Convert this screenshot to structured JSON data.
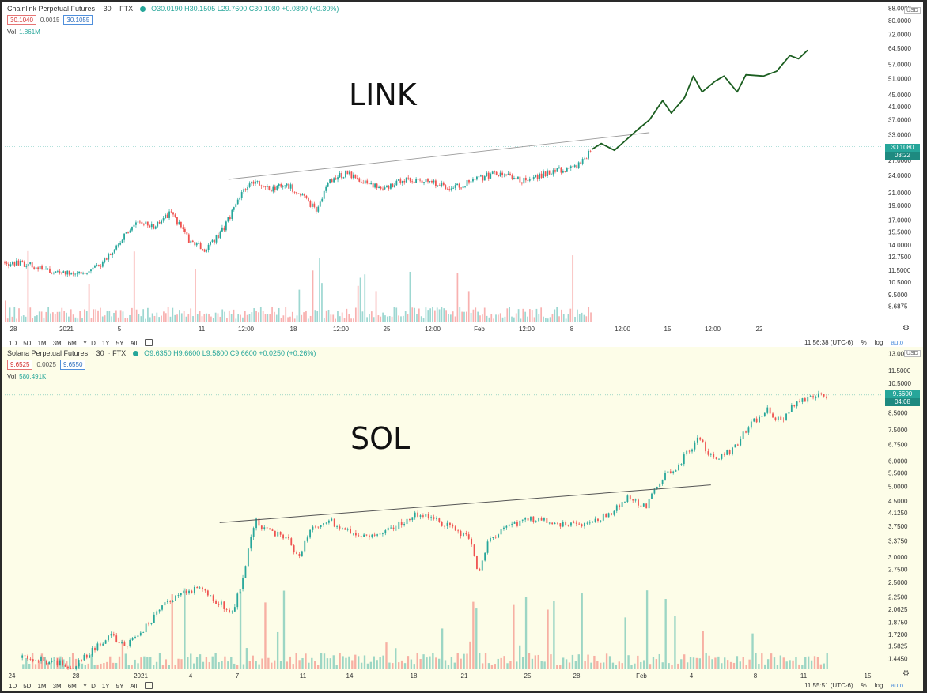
{
  "panels": {
    "top": {
      "header": {
        "symbol": "Chainlink Perpetual Futures",
        "interval": "30",
        "exchange": "FTX",
        "ohlc": "O30.0190 H30.1505 L29.7600 C30.1080 +0.0890 (+0.30%)"
      },
      "sell_price": "30.1040",
      "spread": "0.0015",
      "buy_price": "30.1055",
      "volume_label": "Vol",
      "volume_value": "1.861M",
      "annotation": "LINK",
      "price_badge": "30.1080",
      "countdown_badge": "03:22",
      "currency": "USD",
      "clock": "11:56:38 (UTC-6)",
      "x_ticks": [
        "28",
        "2021",
        "5",
        "11",
        "12:00",
        "18",
        "12:00",
        "25",
        "12:00",
        "Feb",
        "12:00",
        "8",
        "12:00",
        "15",
        "12:00",
        "22"
      ]
    },
    "bottom": {
      "header": {
        "symbol": "Solana Perpetual Futures",
        "interval": "30",
        "exchange": "FTX",
        "ohlc": "O9.6350 H9.6600 L9.5800 C9.6600 +0.0250 (+0.26%)"
      },
      "sell_price": "9.6525",
      "spread": "0.0025",
      "buy_price": "9.6550",
      "volume_label": "Vol",
      "volume_value": "580.491K",
      "annotation": "SOL",
      "price_badge": "9.6600",
      "countdown_badge": "04:08",
      "currency": "USD",
      "clock": "11:55:51 (UTC-6)",
      "x_ticks": [
        "24",
        "28",
        "2021",
        "4",
        "7",
        "11",
        "14",
        "18",
        "21",
        "25",
        "28",
        "Feb",
        "4",
        "8",
        "11",
        "15"
      ]
    }
  },
  "timeframes": [
    "1D",
    "5D",
    "1M",
    "3M",
    "6M",
    "YTD",
    "1Y",
    "5Y",
    "All"
  ],
  "scale_options": {
    "percent": "%",
    "log": "log",
    "auto": "auto"
  },
  "colors": {
    "up": "#26a69a",
    "down": "#ef5350",
    "projection": "#1b5e20",
    "trendline": "#888888"
  },
  "chart_data": [
    {
      "type": "candlestick",
      "title": "Chainlink Perpetual Futures · 30 · FTX",
      "log_scale": true,
      "y_ticks": [
        "88.0000",
        "80.0000",
        "72.0000",
        "64.5000",
        "57.0000",
        "51.0000",
        "45.0000",
        "41.0000",
        "37.0000",
        "33.0000",
        "30.1080",
        "27.0000",
        "24.0000",
        "21.0000",
        "19.0000",
        "17.0000",
        "15.5000",
        "14.0000",
        "12.7500",
        "11.5000",
        "10.5000",
        "9.5000",
        "8.6875"
      ],
      "ylim": [
        8.2,
        90
      ],
      "x_range": [
        0,
        100
      ],
      "history_end_x": 67,
      "last_price": 30.108,
      "price_path": [
        [
          0,
          12.2
        ],
        [
          3,
          12.0
        ],
        [
          6,
          11.2
        ],
        [
          9,
          11.3
        ],
        [
          11,
          12.0
        ],
        [
          13,
          14.2
        ],
        [
          15,
          16.8
        ],
        [
          17,
          16.0
        ],
        [
          19,
          18.0
        ],
        [
          21,
          14.5
        ],
        [
          23,
          13.5
        ],
        [
          25,
          16.0
        ],
        [
          27,
          21.0
        ],
        [
          28.5,
          23.0
        ],
        [
          30,
          21.5
        ],
        [
          32,
          22.5
        ],
        [
          34,
          20.5
        ],
        [
          35.5,
          18.3
        ],
        [
          37,
          23.0
        ],
        [
          39,
          24.5
        ],
        [
          41,
          23.0
        ],
        [
          43,
          21.5
        ],
        [
          45,
          23.0
        ],
        [
          47,
          23.2
        ],
        [
          49,
          22.5
        ],
        [
          51,
          21.8
        ],
        [
          53,
          22.8
        ],
        [
          55,
          24.0
        ],
        [
          57,
          24.5
        ],
        [
          59,
          23.0
        ],
        [
          61,
          24.0
        ],
        [
          63,
          25.0
        ],
        [
          65,
          25.5
        ],
        [
          67,
          29.5
        ]
      ],
      "trendline": [
        [
          25.5,
          23.3
        ],
        [
          73.5,
          33.5
        ]
      ],
      "projection": [
        [
          67,
          29.5
        ],
        [
          68,
          30.8
        ],
        [
          69.5,
          29.2
        ],
        [
          70.5,
          31.0
        ],
        [
          72,
          34.0
        ],
        [
          73.5,
          37.0
        ],
        [
          75,
          43.0
        ],
        [
          76,
          39.0
        ],
        [
          77.5,
          44.0
        ],
        [
          78.5,
          52.0
        ],
        [
          79.5,
          46.0
        ],
        [
          81,
          50.0
        ],
        [
          82,
          52.0
        ],
        [
          83.5,
          46.0
        ],
        [
          84.5,
          52.5
        ],
        [
          86.5,
          52.0
        ],
        [
          88,
          54.0
        ],
        [
          89.5,
          61.0
        ],
        [
          90.5,
          59.5
        ],
        [
          91.5,
          63.5
        ]
      ]
    },
    {
      "type": "candlestick",
      "title": "Solana Perpetual Futures · 30 · FTX",
      "log_scale": true,
      "y_ticks": [
        "13.0000",
        "11.5000",
        "10.5000",
        "9.6600",
        "8.5000",
        "7.5000",
        "6.7500",
        "6.0000",
        "5.5000",
        "5.0000",
        "4.5000",
        "4.1250",
        "3.7500",
        "3.3750",
        "3.0000",
        "2.7500",
        "2.5000",
        "2.2500",
        "2.0625",
        "1.8750",
        "1.7200",
        "1.5825",
        "1.4450"
      ],
      "ylim": [
        1.36,
        13.2
      ],
      "x_range": [
        0,
        100
      ],
      "history_end_x": 94,
      "last_price": 9.66,
      "price_path": [
        [
          2,
          1.45
        ],
        [
          5,
          1.42
        ],
        [
          8,
          1.36
        ],
        [
          10,
          1.55
        ],
        [
          12,
          1.7
        ],
        [
          14,
          1.6
        ],
        [
          16,
          1.8
        ],
        [
          18,
          2.1
        ],
        [
          20,
          2.3
        ],
        [
          22,
          2.4
        ],
        [
          24,
          2.2
        ],
        [
          26,
          2.0
        ],
        [
          27,
          2.5
        ],
        [
          28.5,
          3.9
        ],
        [
          30,
          3.6
        ],
        [
          32,
          3.5
        ],
        [
          33.5,
          3.0
        ],
        [
          35,
          3.7
        ],
        [
          37,
          3.9
        ],
        [
          39,
          3.6
        ],
        [
          41,
          3.5
        ],
        [
          43,
          3.6
        ],
        [
          45,
          3.8
        ],
        [
          47,
          4.1
        ],
        [
          49,
          3.9
        ],
        [
          51,
          3.7
        ],
        [
          53,
          3.4
        ],
        [
          54,
          2.6
        ],
        [
          55,
          3.3
        ],
        [
          57,
          3.7
        ],
        [
          59,
          3.9
        ],
        [
          61,
          4.0
        ],
        [
          63,
          3.8
        ],
        [
          65,
          3.8
        ],
        [
          67,
          3.9
        ],
        [
          69,
          4.1
        ],
        [
          71,
          4.6
        ],
        [
          73,
          4.3
        ],
        [
          75,
          5.3
        ],
        [
          77,
          5.9
        ],
        [
          79,
          7.1
        ],
        [
          81,
          6.0
        ],
        [
          83,
          6.5
        ],
        [
          85,
          7.8
        ],
        [
          87,
          8.7
        ],
        [
          88.5,
          7.9
        ],
        [
          90,
          9.0
        ],
        [
          92,
          9.5
        ],
        [
          94,
          9.66
        ]
      ],
      "trendline": [
        [
          24.5,
          3.85
        ],
        [
          80.5,
          5.05
        ]
      ]
    }
  ]
}
